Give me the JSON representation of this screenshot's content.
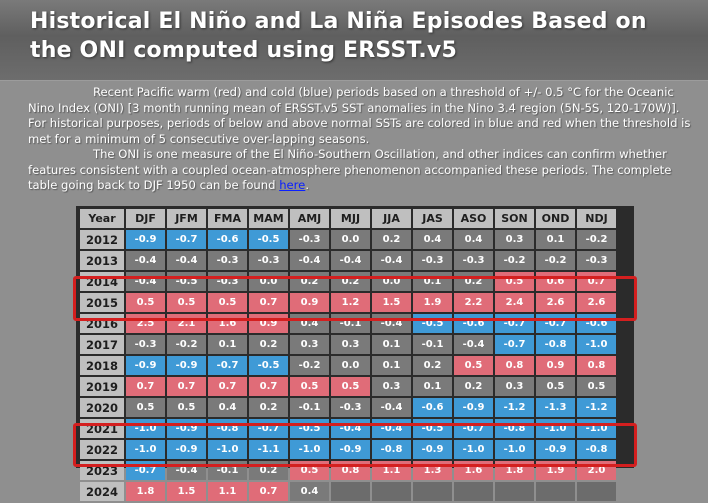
{
  "title": "Historical El Niño and La Niña Episodes Based on the ONI computed using ERSST.v5",
  "description": {
    "p1": "Recent Pacific warm (red) and cold (blue) periods based on a threshold of +/- 0.5 °C for the Oceanic Nino Index (ONI) [3 month running mean of ERSST.v5 SST anomalies in the Nino 3.4 region (5N-5S, 120-170W)]. For historical purposes, periods of below and above normal SSTs are colored in blue and red when the threshold is met for a minimum of 5 consecutive over-lapping seasons.",
    "p2": "The ONI is one measure of the El Niño-Southern Oscillation, and other indices can confirm whether features consistent with a coupled ocean-atmosphere phenomenon accompanied these periods. The complete table going back to DJF 1950 can be found ",
    "link": "here",
    "tail": "."
  },
  "table": {
    "headers": [
      "Year",
      "DJF",
      "JFM",
      "FMA",
      "MAM",
      "AMJ",
      "MJJ",
      "JJA",
      "JAS",
      "ASO",
      "SON",
      "OND",
      "NDJ"
    ],
    "rows": [
      {
        "year": "2012",
        "values": [
          "-0.9",
          "-0.7",
          "-0.6",
          "-0.5",
          "-0.3",
          "0.0",
          "0.2",
          "0.4",
          "0.4",
          "0.3",
          "0.1",
          "-0.2"
        ],
        "classes": [
          "c",
          "c",
          "c",
          "c",
          "n",
          "n",
          "n",
          "n",
          "n",
          "n",
          "n",
          "n"
        ]
      },
      {
        "year": "2013",
        "values": [
          "-0.4",
          "-0.4",
          "-0.3",
          "-0.3",
          "-0.4",
          "-0.4",
          "-0.4",
          "-0.3",
          "-0.3",
          "-0.2",
          "-0.2",
          "-0.3"
        ],
        "classes": [
          "n",
          "n",
          "n",
          "n",
          "n",
          "n",
          "n",
          "n",
          "n",
          "n",
          "n",
          "n"
        ]
      },
      {
        "year": "2014",
        "values": [
          "-0.4",
          "-0.5",
          "-0.3",
          "0.0",
          "0.2",
          "0.2",
          "0.0",
          "0.1",
          "0.2",
          "0.5",
          "0.6",
          "0.7"
        ],
        "classes": [
          "n",
          "n",
          "n",
          "n",
          "n",
          "n",
          "n",
          "n",
          "n",
          "w",
          "w",
          "w"
        ]
      },
      {
        "year": "2015",
        "values": [
          "0.5",
          "0.5",
          "0.5",
          "0.7",
          "0.9",
          "1.2",
          "1.5",
          "1.9",
          "2.2",
          "2.4",
          "2.6",
          "2.6"
        ],
        "classes": [
          "w",
          "w",
          "w",
          "w",
          "w",
          "w",
          "w",
          "w",
          "w",
          "w",
          "w",
          "w"
        ]
      },
      {
        "year": "2016",
        "values": [
          "2.5",
          "2.1",
          "1.6",
          "0.9",
          "0.4",
          "-0.1",
          "-0.4",
          "-0.5",
          "-0.6",
          "-0.7",
          "-0.7",
          "-0.6"
        ],
        "classes": [
          "w",
          "w",
          "w",
          "w",
          "n",
          "n",
          "n",
          "c",
          "c",
          "c",
          "c",
          "c"
        ]
      },
      {
        "year": "2017",
        "values": [
          "-0.3",
          "-0.2",
          "0.1",
          "0.2",
          "0.3",
          "0.3",
          "0.1",
          "-0.1",
          "-0.4",
          "-0.7",
          "-0.8",
          "-1.0"
        ],
        "classes": [
          "n",
          "n",
          "n",
          "n",
          "n",
          "n",
          "n",
          "n",
          "n",
          "c",
          "c",
          "c"
        ]
      },
      {
        "year": "2018",
        "values": [
          "-0.9",
          "-0.9",
          "-0.7",
          "-0.5",
          "-0.2",
          "0.0",
          "0.1",
          "0.2",
          "0.5",
          "0.8",
          "0.9",
          "0.8"
        ],
        "classes": [
          "c",
          "c",
          "c",
          "c",
          "n",
          "n",
          "n",
          "n",
          "w",
          "w",
          "w",
          "w"
        ]
      },
      {
        "year": "2019",
        "values": [
          "0.7",
          "0.7",
          "0.7",
          "0.7",
          "0.5",
          "0.5",
          "0.3",
          "0.1",
          "0.2",
          "0.3",
          "0.5",
          "0.5"
        ],
        "classes": [
          "w",
          "w",
          "w",
          "w",
          "w",
          "w",
          "n",
          "n",
          "n",
          "n",
          "n",
          "n"
        ]
      },
      {
        "year": "2020",
        "values": [
          "0.5",
          "0.5",
          "0.4",
          "0.2",
          "-0.1",
          "-0.3",
          "-0.4",
          "-0.6",
          "-0.9",
          "-1.2",
          "-1.3",
          "-1.2"
        ],
        "classes": [
          "n",
          "n",
          "n",
          "n",
          "n",
          "n",
          "n",
          "c",
          "c",
          "c",
          "c",
          "c"
        ]
      },
      {
        "year": "2021",
        "values": [
          "-1.0",
          "-0.9",
          "-0.8",
          "-0.7",
          "-0.5",
          "-0.4",
          "-0.4",
          "-0.5",
          "-0.7",
          "-0.8",
          "-1.0",
          "-1.0"
        ],
        "classes": [
          "c",
          "c",
          "c",
          "c",
          "c",
          "c",
          "c",
          "c",
          "c",
          "c",
          "c",
          "c"
        ]
      },
      {
        "year": "2022",
        "values": [
          "-1.0",
          "-0.9",
          "-1.0",
          "-1.1",
          "-1.0",
          "-0.9",
          "-0.8",
          "-0.9",
          "-1.0",
          "-1.0",
          "-0.9",
          "-0.8"
        ],
        "classes": [
          "c",
          "c",
          "c",
          "c",
          "c",
          "c",
          "c",
          "c",
          "c",
          "c",
          "c",
          "c"
        ]
      },
      {
        "year": "2023",
        "values": [
          "-0.7",
          "-0.4",
          "-0.1",
          "0.2",
          "0.5",
          "0.8",
          "1.1",
          "1.3",
          "1.6",
          "1.8",
          "1.9",
          "2.0"
        ],
        "classes": [
          "c",
          "n",
          "n",
          "n",
          "w",
          "w",
          "w",
          "w",
          "w",
          "w",
          "w",
          "w"
        ]
      },
      {
        "year": "2024",
        "values": [
          "1.8",
          "1.5",
          "1.1",
          "0.7",
          "0.4",
          "",
          "",
          "",
          "",
          "",
          "",
          ""
        ],
        "classes": [
          "w",
          "w",
          "w",
          "w",
          "n",
          "e",
          "e",
          "e",
          "e",
          "e",
          "e",
          "e"
        ]
      }
    ]
  },
  "colors": {
    "warm": "#e06c78",
    "cold": "#3f9ad6",
    "neutral": "#7a7a7a",
    "highlight_border": "#d41f1f"
  }
}
